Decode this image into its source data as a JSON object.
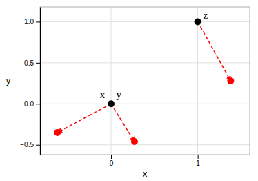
{
  "chart_data": {
    "type": "scatter",
    "xlabel": "x",
    "ylabel": "y",
    "xlim": [
      -0.82,
      1.6
    ],
    "ylim": [
      -0.62,
      1.18
    ],
    "xticks": [
      0,
      1
    ],
    "yticks": [
      {
        "value": -0.5,
        "label": "−0.5"
      },
      {
        "value": 0.0,
        "label": "0.0"
      },
      0.5,
      {
        "value": 1.0,
        "label": "1.0"
      }
    ],
    "grid": true,
    "arrows": {
      "x_start": [
        0.0,
        0.0,
        1.0
      ],
      "y_start": [
        0.0,
        0.0,
        1.0
      ],
      "x_end": [
        -0.62,
        0.27,
        1.38
      ],
      "y_end": [
        -0.35,
        -0.46,
        0.28
      ],
      "color": "#ff0000",
      "line_style": "dashed"
    },
    "series": [
      {
        "color": "#ff0000",
        "x": [
          -0.62,
          0.27,
          1.38
        ],
        "values": [
          -0.35,
          -0.46,
          0.28
        ]
      },
      {
        "color": "#000000",
        "x": [
          0.0,
          1.0
        ],
        "values": [
          0.0,
          1.0
        ]
      }
    ],
    "annotations": [
      {
        "text": "x",
        "x": -0.1,
        "y": 0.07
      },
      {
        "text": "y",
        "x": 0.09,
        "y": 0.07
      },
      {
        "text": "z",
        "x": 1.09,
        "y": 1.04
      }
    ]
  }
}
